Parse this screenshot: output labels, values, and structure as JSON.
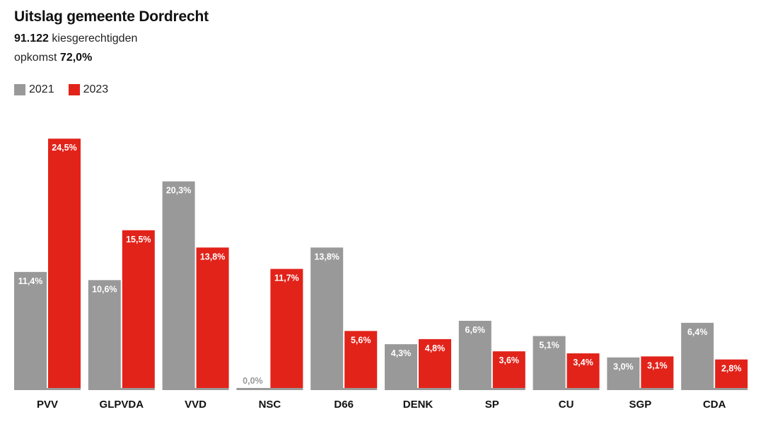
{
  "header": {
    "title": "Uitslag gemeente Dordrecht",
    "eligible_value": "91.122",
    "eligible_label": "kiesgerechtigden",
    "turnout_label": "opkomst",
    "turnout_value": "72,0%"
  },
  "colors": {
    "2021": "#999999",
    "2023": "#e2231a",
    "baseline": "#999999"
  },
  "chart_data": {
    "type": "bar",
    "title": "Uitslag gemeente Dordrecht",
    "xlabel": "",
    "ylabel": "",
    "ylim": [
      0,
      25
    ],
    "grid": false,
    "legend_position": "top-left",
    "categories": [
      "PVV",
      "GLPVDA",
      "VVD",
      "NSC",
      "D66",
      "DENK",
      "SP",
      "CU",
      "SGP",
      "CDA"
    ],
    "series": [
      {
        "name": "2021",
        "values": [
          11.4,
          10.6,
          20.3,
          0.0,
          13.8,
          4.3,
          6.6,
          5.1,
          3.0,
          6.4
        ],
        "labels": [
          "11,4%",
          "10,6%",
          "20,3%",
          "0,0%",
          "13,8%",
          "4,3%",
          "6,6%",
          "5,1%",
          "3,0%",
          "6,4%"
        ]
      },
      {
        "name": "2023",
        "values": [
          24.5,
          15.5,
          13.8,
          11.7,
          5.6,
          4.8,
          3.6,
          3.4,
          3.1,
          2.8
        ],
        "labels": [
          "24,5%",
          "15,5%",
          "13,8%",
          "11,7%",
          "5,6%",
          "4,8%",
          "3,6%",
          "3,4%",
          "3,1%",
          "2,8%"
        ]
      }
    ]
  }
}
